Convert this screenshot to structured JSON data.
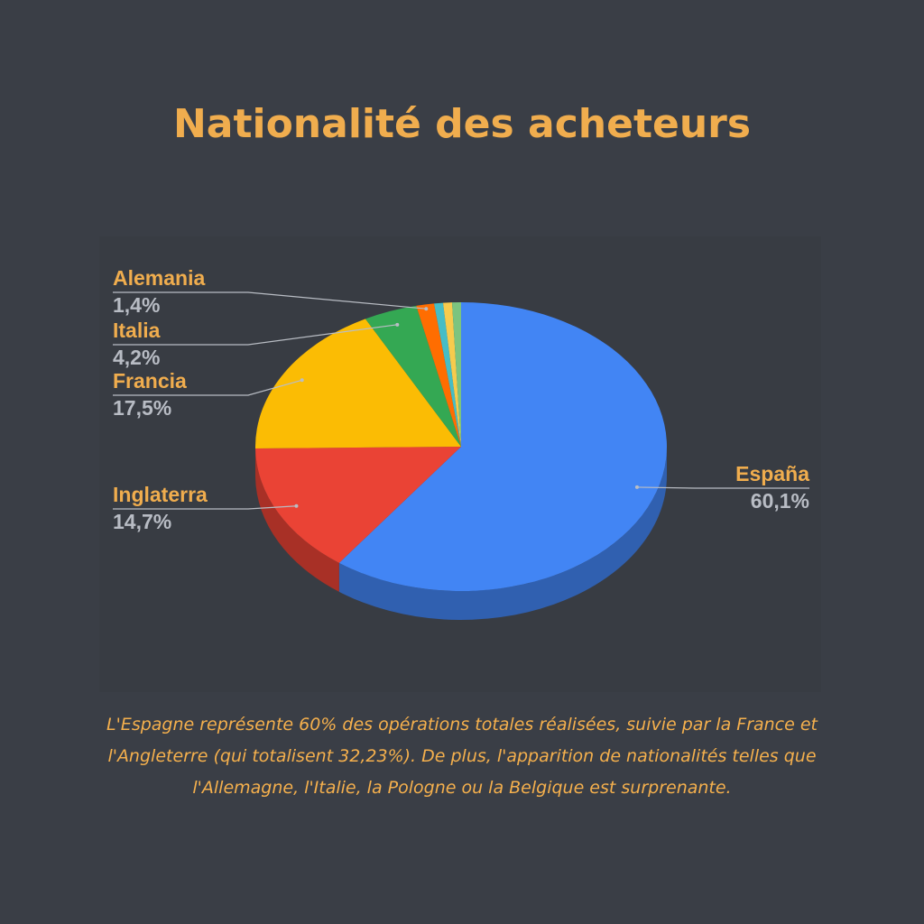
{
  "chart_data": {
    "type": "pie3d",
    "title": "Nationalité des acheteurs",
    "categories": [
      "España",
      "Inglaterra",
      "Francia",
      "Italia",
      "Alemania",
      null,
      null,
      null
    ],
    "values": [
      60.1,
      14.7,
      17.5,
      4.2,
      1.4,
      0.7,
      0.7,
      0.7
    ],
    "value_labels": [
      "60,1%",
      "14,7%",
      "17,5%",
      "4,2%",
      "1,4%",
      null,
      null,
      null
    ],
    "colors": [
      "#4285f4",
      "#ea4335",
      "#fbbc04",
      "#34a853",
      "#ff6d01",
      "#46bdc6",
      "#f7cb4d",
      "#7cc47f"
    ],
    "caption": "L'Espagne représente 60% des opérations totales réalisées, suivie par la France et l'Angleterre (qui totalisent 32,23%). De plus, l'apparition de nationalités telles que l'Allemagne, l'Italie, la Pologne ou la Belgique est surprenante."
  }
}
